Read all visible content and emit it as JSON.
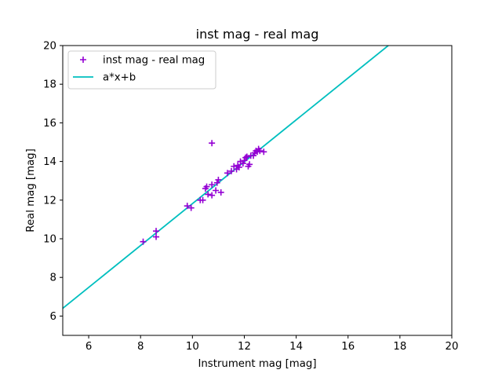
{
  "chart_data": {
    "type": "scatter",
    "title": "inst mag - real mag",
    "xlabel": "Instrument mag [mag]",
    "ylabel": "Real mag [mag]",
    "xlim": [
      5,
      20
    ],
    "ylim": [
      5,
      20
    ],
    "xticks": [
      6,
      8,
      10,
      12,
      14,
      16,
      18,
      20
    ],
    "yticks": [
      6,
      8,
      10,
      12,
      14,
      16,
      18,
      20
    ],
    "grid": false,
    "legend_position": "top-left",
    "series": [
      {
        "name": "inst mag - real mag",
        "kind": "scatter",
        "marker": "+",
        "color": "#9400d3",
        "points": [
          [
            8.1,
            9.85
          ],
          [
            8.6,
            10.4
          ],
          [
            8.6,
            10.1
          ],
          [
            9.8,
            11.7
          ],
          [
            9.95,
            11.6
          ],
          [
            10.3,
            12.0
          ],
          [
            10.4,
            12.0
          ],
          [
            10.5,
            12.6
          ],
          [
            10.55,
            12.7
          ],
          [
            10.6,
            12.3
          ],
          [
            10.75,
            12.25
          ],
          [
            10.75,
            12.8
          ],
          [
            10.75,
            14.95
          ],
          [
            10.9,
            12.5
          ],
          [
            10.95,
            12.9
          ],
          [
            11.0,
            13.05
          ],
          [
            11.1,
            12.4
          ],
          [
            11.35,
            13.4
          ],
          [
            11.5,
            13.5
          ],
          [
            11.6,
            13.75
          ],
          [
            11.7,
            13.6
          ],
          [
            11.75,
            13.8
          ],
          [
            11.8,
            13.7
          ],
          [
            11.85,
            14.0
          ],
          [
            11.95,
            13.9
          ],
          [
            12.0,
            14.05
          ],
          [
            12.05,
            14.2
          ],
          [
            12.1,
            14.25
          ],
          [
            12.15,
            13.75
          ],
          [
            12.2,
            13.85
          ],
          [
            12.25,
            14.3
          ],
          [
            12.35,
            14.3
          ],
          [
            12.4,
            14.45
          ],
          [
            12.45,
            14.55
          ],
          [
            12.5,
            14.5
          ],
          [
            12.55,
            14.65
          ],
          [
            12.6,
            14.55
          ],
          [
            12.75,
            14.5
          ]
        ]
      },
      {
        "name": "a*x+b",
        "kind": "line",
        "color": "#00bfbf",
        "points": [
          [
            5.0,
            6.4
          ],
          [
            17.55,
            20.0
          ]
        ]
      }
    ]
  }
}
